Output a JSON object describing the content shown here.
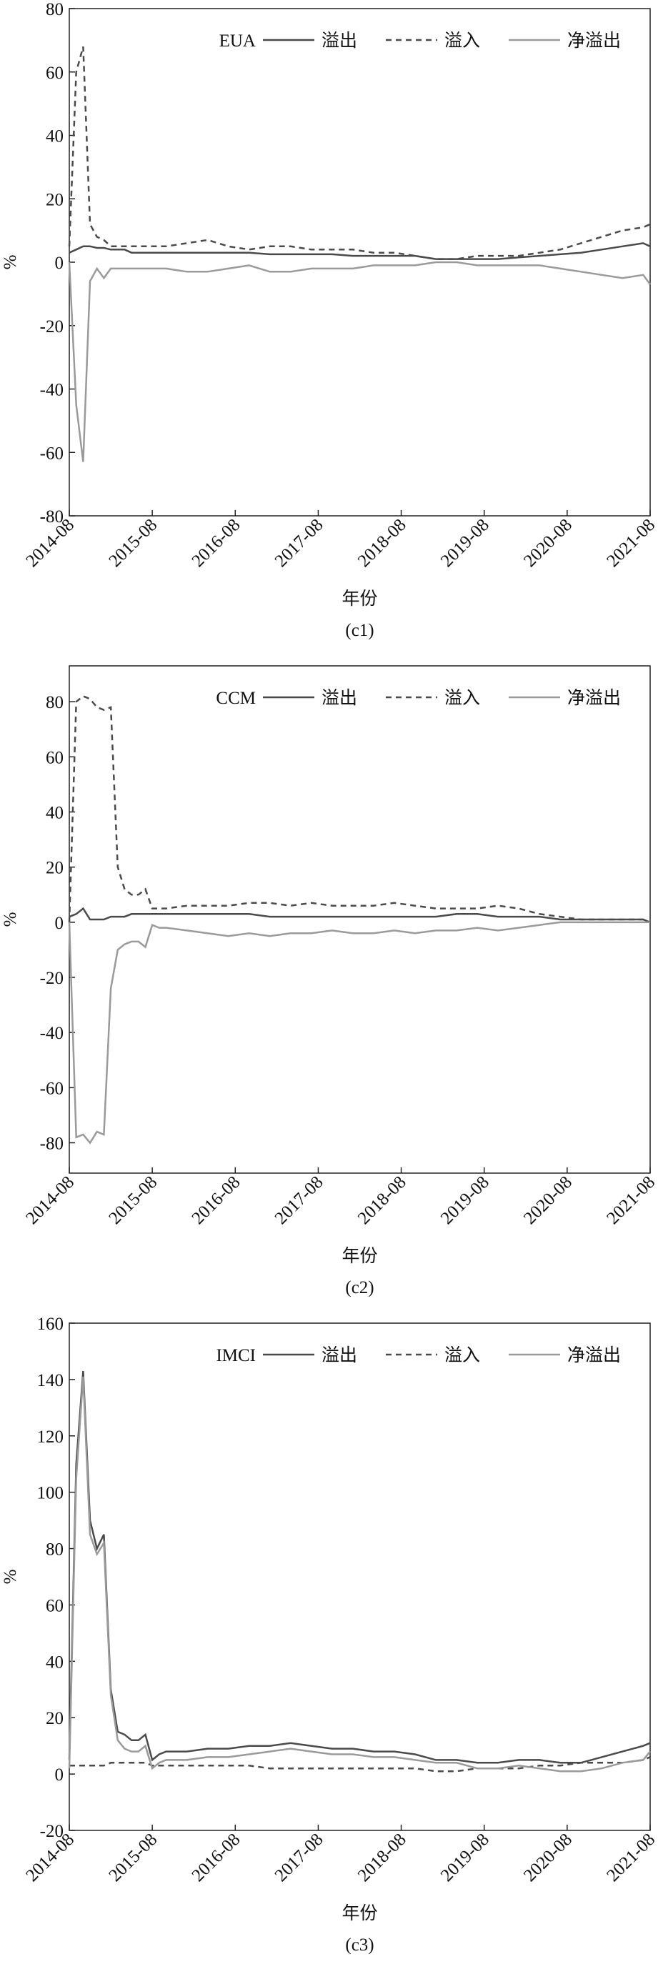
{
  "chart_data": [
    {
      "type": "line",
      "legend_title": "EUA",
      "x_label": "年份",
      "y_label": "%",
      "caption": "(c1)",
      "legend": "upper right",
      "x": [
        "2014-08",
        "2014-09",
        "2014-10",
        "2014-11",
        "2014-12",
        "2015-01",
        "2015-02",
        "2015-03",
        "2015-04",
        "2015-05",
        "2015-06",
        "2015-07",
        "2015-08",
        "2015-09",
        "2015-10",
        "2016-01",
        "2016-04",
        "2016-07",
        "2016-10",
        "2017-01",
        "2017-04",
        "2017-07",
        "2017-10",
        "2018-01",
        "2018-04",
        "2018-07",
        "2018-10",
        "2019-01",
        "2019-04",
        "2019-07",
        "2019-10",
        "2020-01",
        "2020-04",
        "2020-07",
        "2020-10",
        "2021-01",
        "2021-04",
        "2021-07",
        "2021-08"
      ],
      "xlim": [
        "2014-08",
        "2021-08"
      ],
      "xticks": [
        "2014-08",
        "2015-08",
        "2016-08",
        "2017-08",
        "2018-08",
        "2019-08",
        "2020-08",
        "2021-08"
      ],
      "ylim": [
        -80,
        80
      ],
      "yticks": [
        -80,
        -60,
        -40,
        -20,
        0,
        20,
        40,
        60,
        80
      ],
      "series": [
        {
          "name": "溢出",
          "color": "#4a4a4a",
          "dashed": false,
          "values": [
            3,
            4,
            5,
            5,
            4.5,
            4.5,
            4,
            4,
            4,
            3,
            3,
            3,
            3,
            3,
            3,
            3,
            3,
            3,
            3,
            2.5,
            2.5,
            2.5,
            2.5,
            2,
            2,
            2,
            2,
            1,
            1,
            1,
            1,
            1.5,
            2,
            2.5,
            3,
            4,
            5,
            6,
            5
          ]
        },
        {
          "name": "溢入",
          "color": "#4a4a4a",
          "dashed": true,
          "values": [
            5,
            60,
            68,
            12,
            8,
            7,
            5,
            5,
            5,
            5,
            5,
            5,
            5,
            5,
            5,
            6,
            7,
            5,
            4,
            5,
            5,
            4,
            4,
            4,
            3,
            3,
            2,
            1,
            1,
            2,
            2,
            2,
            3,
            4,
            6,
            8,
            10,
            11,
            12
          ]
        },
        {
          "name": "净溢出",
          "color": "#9a9a9a",
          "dashed": false,
          "values": [
            0,
            -45,
            -63,
            -6,
            -2,
            -5,
            -2,
            -2,
            -2,
            -2,
            -2,
            -2,
            -2,
            -2,
            -2,
            -3,
            -3,
            -2,
            -1,
            -3,
            -3,
            -2,
            -2,
            -2,
            -1,
            -1,
            -1,
            0,
            0,
            -1,
            -1,
            -1,
            -1,
            -2,
            -3,
            -4,
            -5,
            -4,
            -7
          ]
        }
      ]
    },
    {
      "type": "line",
      "legend_title": "CCM",
      "x_label": "年份",
      "y_label": "%",
      "caption": "(c2)",
      "legend": "upper right",
      "x": [
        "2014-08",
        "2014-09",
        "2014-10",
        "2014-11",
        "2014-12",
        "2015-01",
        "2015-02",
        "2015-03",
        "2015-04",
        "2015-05",
        "2015-06",
        "2015-07",
        "2015-08",
        "2015-09",
        "2015-10",
        "2016-01",
        "2016-04",
        "2016-07",
        "2016-10",
        "2017-01",
        "2017-04",
        "2017-07",
        "2017-10",
        "2018-01",
        "2018-04",
        "2018-07",
        "2018-10",
        "2019-01",
        "2019-04",
        "2019-07",
        "2019-10",
        "2020-01",
        "2020-04",
        "2020-07",
        "2020-10",
        "2021-01",
        "2021-04",
        "2021-07",
        "2021-08"
      ],
      "xlim": [
        "2014-08",
        "2021-08"
      ],
      "xticks": [
        "2014-08",
        "2015-08",
        "2016-08",
        "2017-08",
        "2018-08",
        "2019-08",
        "2020-08",
        "2021-08"
      ],
      "ylim": [
        -91,
        93
      ],
      "yticks": [
        -80,
        -60,
        -40,
        -20,
        0,
        20,
        40,
        60,
        80
      ],
      "series": [
        {
          "name": "溢出",
          "color": "#4a4a4a",
          "dashed": false,
          "values": [
            2,
            3,
            5,
            1,
            1,
            1,
            2,
            2,
            2,
            3,
            3,
            3,
            3,
            3,
            3,
            3,
            3,
            3,
            3,
            2,
            2,
            2,
            2,
            2,
            2,
            2,
            2,
            2,
            3,
            3,
            2,
            2,
            2,
            1,
            1,
            1,
            1,
            1,
            0
          ]
        },
        {
          "name": "溢入",
          "color": "#4a4a4a",
          "dashed": true,
          "values": [
            0,
            80,
            82,
            81,
            78,
            77,
            78,
            20,
            12,
            10,
            10,
            12,
            5,
            5,
            5,
            6,
            6,
            6,
            7,
            7,
            6,
            7,
            6,
            6,
            6,
            7,
            6,
            5,
            5,
            5,
            6,
            5,
            3,
            2,
            1,
            1,
            1,
            1,
            0
          ]
        },
        {
          "name": "净溢出",
          "color": "#9a9a9a",
          "dashed": false,
          "values": [
            0,
            -78,
            -77,
            -80,
            -76,
            -77,
            -24,
            -10,
            -8,
            -7,
            -7,
            -9,
            -1,
            -2,
            -2,
            -3,
            -4,
            -5,
            -4,
            -5,
            -4,
            -4,
            -3,
            -4,
            -4,
            -3,
            -4,
            -3,
            -3,
            -2,
            -3,
            -2,
            -1,
            0,
            0,
            0,
            0,
            0,
            0
          ]
        }
      ]
    },
    {
      "type": "line",
      "legend_title": "IMCI",
      "x_label": "年份",
      "y_label": "%",
      "caption": "(c3)",
      "legend": "upper right",
      "x": [
        "2014-08",
        "2014-09",
        "2014-10",
        "2014-11",
        "2014-12",
        "2015-01",
        "2015-02",
        "2015-03",
        "2015-04",
        "2015-05",
        "2015-06",
        "2015-07",
        "2015-08",
        "2015-09",
        "2015-10",
        "2016-01",
        "2016-04",
        "2016-07",
        "2016-10",
        "2017-01",
        "2017-04",
        "2017-07",
        "2017-10",
        "2018-01",
        "2018-04",
        "2018-07",
        "2018-10",
        "2019-01",
        "2019-04",
        "2019-07",
        "2019-10",
        "2020-01",
        "2020-04",
        "2020-07",
        "2020-10",
        "2021-01",
        "2021-04",
        "2021-07",
        "2021-08"
      ],
      "xlim": [
        "2014-08",
        "2021-08"
      ],
      "xticks": [
        "2014-08",
        "2015-08",
        "2016-08",
        "2017-08",
        "2018-08",
        "2019-08",
        "2020-08",
        "2021-08"
      ],
      "ylim": [
        -20,
        160
      ],
      "yticks": [
        -20,
        0,
        20,
        40,
        60,
        80,
        100,
        120,
        140,
        160
      ],
      "series": [
        {
          "name": "溢出",
          "color": "#4a4a4a",
          "dashed": false,
          "values": [
            5,
            110,
            143,
            90,
            80,
            85,
            30,
            15,
            14,
            12,
            12,
            14,
            5,
            7,
            8,
            8,
            9,
            9,
            10,
            10,
            11,
            10,
            9,
            9,
            8,
            8,
            7,
            5,
            5,
            4,
            4,
            5,
            5,
            4,
            4,
            6,
            8,
            10,
            11
          ]
        },
        {
          "name": "溢入",
          "color": "#4a4a4a",
          "dashed": true,
          "values": [
            3,
            3,
            3,
            3,
            3,
            3,
            4,
            4,
            4,
            4,
            4,
            4,
            3,
            3,
            3,
            3,
            3,
            3,
            3,
            2,
            2,
            2,
            2,
            2,
            2,
            2,
            2,
            1,
            1,
            2,
            2,
            2,
            3,
            3,
            4,
            4,
            4,
            5,
            6
          ]
        },
        {
          "name": "净溢出",
          "color": "#9a9a9a",
          "dashed": false,
          "values": [
            2,
            105,
            141,
            85,
            78,
            82,
            28,
            12,
            9,
            8,
            8,
            10,
            2,
            4,
            5,
            5,
            6,
            6,
            7,
            8,
            9,
            8,
            7,
            7,
            6,
            6,
            5,
            4,
            4,
            2,
            2,
            3,
            2,
            1,
            1,
            2,
            4,
            5,
            8
          ]
        }
      ]
    }
  ]
}
